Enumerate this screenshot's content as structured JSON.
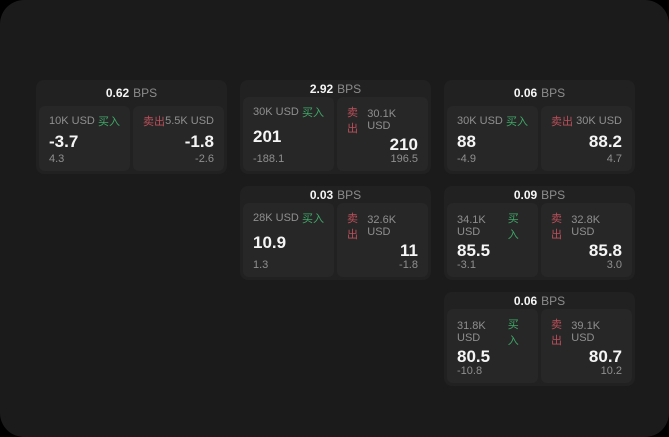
{
  "colors": {
    "page_bg": "#000000",
    "panel_bg": "#1b1b1b",
    "card_bg": "#212121",
    "cell_bg": "#272727",
    "text_primary": "#f5f5f5",
    "text_muted": "#8f8f8f",
    "buy_green": "#3fa868",
    "sell_red": "#bb4f5a"
  },
  "labels": {
    "bps": "BPS",
    "buy": "买入",
    "sell": "卖出"
  },
  "cards": [
    {
      "bps": "0.62",
      "buy": {
        "notional": "10K USD",
        "price": "-3.7",
        "sub": "4.3"
      },
      "sell": {
        "notional": "5.5K USD",
        "price": "-1.8",
        "sub": "-2.6"
      }
    },
    {
      "bps": "2.92",
      "buy": {
        "notional": "30K USD",
        "price": "201",
        "sub": "-188.1"
      },
      "sell": {
        "notional": "30.1K USD",
        "price": "210",
        "sub": "196.5"
      }
    },
    {
      "bps": "0.06",
      "buy": {
        "notional": "30K USD",
        "price": "88",
        "sub": "-4.9"
      },
      "sell": {
        "notional": "30K USD",
        "price": "88.2",
        "sub": "4.7"
      }
    },
    {
      "bps": "0.03",
      "buy": {
        "notional": "28K USD",
        "price": "10.9",
        "sub": "1.3"
      },
      "sell": {
        "notional": "32.6K USD",
        "price": "11",
        "sub": "-1.8"
      }
    },
    {
      "bps": "0.09",
      "buy": {
        "notional": "34.1K USD",
        "price": "85.5",
        "sub": "-3.1"
      },
      "sell": {
        "notional": "32.8K USD",
        "price": "85.8",
        "sub": "3.0"
      }
    },
    {
      "bps": "0.06",
      "buy": {
        "notional": "31.8K USD",
        "price": "80.5",
        "sub": "-10.8"
      },
      "sell": {
        "notional": "39.1K USD",
        "price": "80.7",
        "sub": "10.2"
      }
    }
  ]
}
